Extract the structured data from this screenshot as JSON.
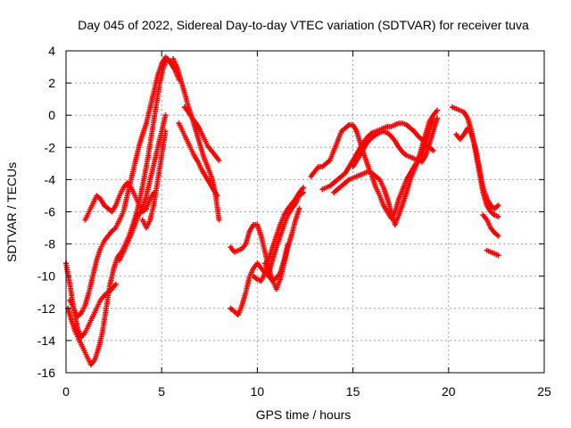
{
  "chart_data": {
    "type": "scatter",
    "title": "Day 045 of 2022, Sidereal Day-to-day VTEC variation (SDTVAR) for receiver tuva",
    "xlabel": "GPS time / hours",
    "ylabel": "SDTVAR / TECUs",
    "xlim": [
      0,
      25
    ],
    "ylim": [
      -16,
      4
    ],
    "xticks": [
      0,
      5,
      10,
      15,
      20,
      25
    ],
    "yticks": [
      -16,
      -14,
      -12,
      -10,
      -8,
      -6,
      -4,
      -2,
      0,
      2,
      4
    ],
    "xtick_labels": [
      "0",
      "5",
      "10",
      "15",
      "20",
      "25"
    ],
    "ytick_labels": [
      "-16",
      "-14",
      "-12",
      "-10",
      "-8",
      "-6",
      "-4",
      "-2",
      "0",
      "2",
      "4"
    ],
    "grid": true,
    "marker": "plus",
    "color": "#ff0000",
    "series": [
      {
        "name": "track-1",
        "x": [
          0.0,
          0.2,
          0.4,
          0.6,
          0.8,
          1.0,
          1.2,
          1.4,
          1.6,
          1.8,
          2.0,
          2.2,
          2.4,
          2.6
        ],
        "y": [
          -9.2,
          -10.5,
          -12.0,
          -13.2,
          -13.8,
          -13.5,
          -13.0,
          -12.5,
          -12.0,
          -11.5,
          -11.2,
          -11.0,
          -10.8,
          -10.5
        ]
      },
      {
        "name": "track-2",
        "x": [
          0.1,
          0.3,
          0.5,
          0.7,
          0.9,
          1.1,
          1.3,
          1.5,
          1.7,
          1.9,
          2.1,
          2.3,
          2.5,
          2.7,
          2.9,
          3.1,
          3.3,
          3.5,
          3.7,
          3.9,
          4.1,
          4.3,
          4.5,
          4.7,
          4.9,
          5.1,
          5.3,
          5.5,
          5.7,
          5.9
        ],
        "y": [
          -12.0,
          -12.8,
          -13.5,
          -14.0,
          -14.5,
          -15.0,
          -15.5,
          -15.2,
          -14.5,
          -13.5,
          -12.0,
          -10.5,
          -9.5,
          -8.8,
          -8.5,
          -8.0,
          -7.5,
          -6.8,
          -6.0,
          -5.0,
          -3.8,
          -2.5,
          -1.0,
          0.5,
          2.0,
          3.0,
          3.5,
          3.2,
          2.8,
          2.2
        ]
      },
      {
        "name": "track-3",
        "x": [
          0.2,
          0.4,
          0.6,
          0.8,
          1.0,
          1.2,
          1.4,
          1.6,
          1.8,
          2.0,
          2.2,
          2.4,
          2.6,
          2.8,
          3.0,
          3.2,
          3.4,
          3.6,
          3.8,
          4.0,
          4.2,
          4.4,
          4.6,
          4.8,
          5.0,
          5.2,
          5.4,
          5.6
        ],
        "y": [
          -11.5,
          -12.0,
          -12.5,
          -12.3,
          -11.8,
          -11.0,
          -10.0,
          -9.0,
          -8.3,
          -7.8,
          -7.5,
          -7.2,
          -7.0,
          -6.5,
          -6.0,
          -5.0,
          -4.0,
          -3.0,
          -2.0,
          -1.2,
          -0.5,
          0.5,
          1.5,
          2.5,
          3.2,
          3.6,
          3.4,
          3.0
        ]
      },
      {
        "name": "track-4",
        "x": [
          1.0,
          1.2,
          1.4,
          1.6,
          1.8,
          2.0,
          2.2,
          2.4,
          2.6,
          2.8,
          3.0,
          3.2,
          3.4,
          3.6,
          3.8,
          4.0,
          4.2,
          4.4,
          4.6
        ],
        "y": [
          -6.5,
          -6.0,
          -5.5,
          -5.0,
          -5.2,
          -5.6,
          -5.8,
          -6.0,
          -5.6,
          -5.0,
          -4.5,
          -4.2,
          -4.5,
          -5.0,
          -5.5,
          -6.0,
          -5.8,
          -5.2,
          -4.8
        ]
      },
      {
        "name": "track-5",
        "x": [
          2.8,
          3.0,
          3.2,
          3.4,
          3.6,
          3.8,
          4.0,
          4.2,
          4.4,
          4.6,
          4.8,
          5.0,
          5.2
        ],
        "y": [
          -9.0,
          -8.5,
          -8.0,
          -7.4,
          -6.8,
          -6.2,
          -5.8,
          -5.0,
          -4.0,
          -3.0,
          -2.0,
          -1.0,
          0.0
        ]
      },
      {
        "name": "track-6",
        "x": [
          5.6,
          5.8,
          6.0,
          6.2,
          6.4,
          6.6,
          6.8,
          7.0,
          7.2,
          7.4,
          7.6,
          7.8,
          8.0
        ],
        "y": [
          3.5,
          3.0,
          2.2,
          1.4,
          0.5,
          -0.2,
          -1.0,
          -1.8,
          -2.6,
          -3.2,
          -3.8,
          -4.8,
          -6.5
        ]
      },
      {
        "name": "track-7",
        "x": [
          6.2,
          6.4,
          6.6,
          6.8,
          7.0,
          7.2,
          7.4,
          7.6,
          7.8,
          8.0
        ],
        "y": [
          0.5,
          0.2,
          -0.2,
          -0.5,
          -0.9,
          -1.4,
          -1.9,
          -2.2,
          -2.5,
          -2.8
        ]
      },
      {
        "name": "track-8",
        "x": [
          5.9,
          6.1,
          6.3,
          6.5,
          6.7,
          6.9,
          7.1,
          7.3,
          7.5,
          7.7,
          7.9
        ],
        "y": [
          -0.5,
          -1.0,
          -1.5,
          -2.0,
          -2.5,
          -2.9,
          -3.4,
          -3.8,
          -4.2,
          -4.6,
          -5.0
        ]
      },
      {
        "name": "track-9",
        "x": [
          4.0,
          4.2,
          4.4,
          4.6,
          4.8,
          5.0,
          5.2
        ],
        "y": [
          -6.5,
          -7.0,
          -6.5,
          -5.5,
          -4.0,
          -2.5,
          -1.0
        ]
      },
      {
        "name": "track-10",
        "x": [
          8.6,
          8.8,
          9.0,
          9.2,
          9.4,
          9.6,
          9.8,
          10.0,
          10.2,
          10.4,
          10.6,
          10.8,
          11.0,
          11.2,
          11.4,
          11.6
        ],
        "y": [
          -12.0,
          -12.2,
          -12.4,
          -11.8,
          -11.0,
          -10.0,
          -9.5,
          -9.2,
          -9.5,
          -9.8,
          -10.0,
          -10.3,
          -10.1,
          -9.8,
          -9.0,
          -8.0
        ]
      },
      {
        "name": "track-11",
        "x": [
          8.6,
          8.8,
          9.0,
          9.2,
          9.4,
          9.6,
          9.8,
          10.0,
          10.2,
          10.4,
          10.6,
          10.8,
          11.0,
          11.2,
          11.4,
          11.6,
          11.8,
          12.0,
          12.2
        ],
        "y": [
          -8.2,
          -8.5,
          -8.4,
          -8.3,
          -8.0,
          -7.2,
          -6.8,
          -6.8,
          -7.5,
          -8.5,
          -9.5,
          -10.3,
          -10.8,
          -10.2,
          -9.2,
          -8.2,
          -7.4,
          -6.5,
          -5.8
        ]
      },
      {
        "name": "track-12",
        "x": [
          9.8,
          10.0,
          10.2,
          10.4,
          10.6,
          10.8,
          11.0,
          11.2,
          11.4,
          11.6,
          11.8,
          12.0,
          12.2,
          12.4
        ],
        "y": [
          -10.0,
          -10.2,
          -10.3,
          -9.8,
          -9.0,
          -8.2,
          -7.5,
          -6.8,
          -6.2,
          -5.8,
          -5.5,
          -5.2,
          -4.8,
          -4.5
        ]
      },
      {
        "name": "track-13",
        "x": [
          10.4,
          10.6,
          10.8,
          11.0,
          11.2,
          11.4,
          11.6,
          11.8,
          12.0,
          12.2,
          12.4
        ],
        "y": [
          -9.2,
          -9.8,
          -9.0,
          -8.2,
          -7.5,
          -6.8,
          -6.2,
          -5.8,
          -5.5,
          -5.0,
          -4.8
        ]
      },
      {
        "name": "track-14",
        "x": [
          12.8,
          13.0,
          13.2,
          13.4,
          13.6,
          13.8,
          14.0,
          14.2,
          14.4,
          14.6,
          14.8,
          15.0,
          15.2,
          15.4,
          15.6,
          15.8,
          16.0,
          16.2,
          16.4,
          16.6,
          16.8,
          17.0,
          17.2,
          17.4,
          17.6,
          17.8,
          18.0,
          18.2,
          18.4,
          18.6,
          18.8,
          19.0,
          19.2
        ],
        "y": [
          -3.8,
          -3.5,
          -3.2,
          -3.2,
          -3.0,
          -2.8,
          -2.2,
          -1.6,
          -1.0,
          -0.8,
          -0.6,
          -0.6,
          -1.0,
          -1.8,
          -2.5,
          -3.2,
          -3.8,
          -4.5,
          -5.0,
          -5.6,
          -6.0,
          -6.4,
          -6.0,
          -5.2,
          -4.6,
          -4.0,
          -3.6,
          -3.2,
          -2.8,
          -2.4,
          -1.8,
          -1.0,
          -0.2
        ]
      },
      {
        "name": "track-15",
        "x": [
          13.4,
          13.6,
          13.8,
          14.0,
          14.2,
          14.4,
          14.6,
          14.8,
          15.0,
          15.2,
          15.4,
          15.6,
          15.8,
          16.0,
          16.2,
          16.4,
          16.6,
          16.8,
          17.0,
          17.2,
          17.4,
          17.6,
          17.8,
          18.0,
          18.2,
          18.4,
          18.6,
          18.8,
          19.0,
          19.2
        ],
        "y": [
          -4.6,
          -4.5,
          -4.4,
          -4.2,
          -4.0,
          -3.8,
          -3.6,
          -3.2,
          -2.8,
          -2.4,
          -2.0,
          -1.6,
          -1.3,
          -1.1,
          -1.0,
          -0.9,
          -0.8,
          -0.7,
          -0.7,
          -0.6,
          -0.5,
          -0.5,
          -0.6,
          -0.8,
          -1.0,
          -1.3,
          -1.5,
          -1.8,
          -2.0,
          -2.2
        ]
      },
      {
        "name": "track-16",
        "x": [
          14.0,
          14.2,
          14.4,
          14.6,
          14.8,
          15.0,
          15.2,
          15.4,
          15.6,
          15.8,
          16.0,
          16.2,
          16.4,
          16.6,
          16.8,
          17.0,
          17.2,
          17.4,
          17.6,
          17.8,
          18.0,
          18.2,
          18.4,
          18.6,
          18.8,
          19.0,
          19.2,
          19.4
        ],
        "y": [
          -4.8,
          -4.6,
          -4.4,
          -4.2,
          -4.0,
          -3.9,
          -3.8,
          -3.7,
          -3.6,
          -3.5,
          -3.6,
          -3.8,
          -4.0,
          -4.5,
          -5.2,
          -6.0,
          -6.8,
          -6.2,
          -5.5,
          -4.8,
          -4.0,
          -3.4,
          -2.8,
          -2.0,
          -1.2,
          -0.4,
          0.0,
          0.3
        ]
      },
      {
        "name": "track-17",
        "x": [
          15.0,
          15.2,
          15.4,
          15.6,
          15.8,
          16.0,
          16.2,
          16.4,
          16.6,
          16.8,
          17.0,
          17.2,
          17.4,
          17.6,
          17.8,
          18.0,
          18.2,
          18.4,
          18.6,
          18.8,
          19.0,
          19.2,
          19.4
        ],
        "y": [
          -3.2,
          -2.8,
          -2.4,
          -2.0,
          -1.6,
          -1.4,
          -1.2,
          -1.1,
          -1.0,
          -1.1,
          -1.3,
          -1.6,
          -2.0,
          -2.3,
          -2.5,
          -2.6,
          -2.7,
          -2.8,
          -2.9,
          -2.5,
          -1.8,
          -1.0,
          -0.2
        ]
      },
      {
        "name": "track-18",
        "x": [
          20.2,
          20.4,
          20.6,
          20.8,
          21.0,
          21.2,
          21.4,
          21.6,
          21.8,
          22.0,
          22.2,
          22.4,
          22.6
        ],
        "y": [
          0.5,
          0.4,
          0.3,
          0.2,
          -0.2,
          -1.0,
          -2.2,
          -3.5,
          -4.8,
          -5.6,
          -6.0,
          -6.2,
          -6.3
        ]
      },
      {
        "name": "track-19",
        "x": [
          20.4,
          20.6,
          20.8,
          21.0,
          21.2,
          21.4,
          21.6,
          21.8,
          22.0,
          22.2,
          22.4,
          22.6
        ],
        "y": [
          -1.2,
          -1.5,
          -1.2,
          -0.8,
          -1.2,
          -2.0,
          -3.2,
          -4.5,
          -5.2,
          -5.6,
          -5.8,
          -5.6
        ]
      },
      {
        "name": "track-20",
        "x": [
          21.8,
          22.0,
          22.2,
          22.4,
          22.6
        ],
        "y": [
          -6.2,
          -6.5,
          -7.0,
          -7.3,
          -7.5
        ]
      },
      {
        "name": "track-21",
        "x": [
          22.0,
          22.2,
          22.4,
          22.6
        ],
        "y": [
          -8.4,
          -8.5,
          -8.6,
          -8.7
        ]
      }
    ]
  }
}
